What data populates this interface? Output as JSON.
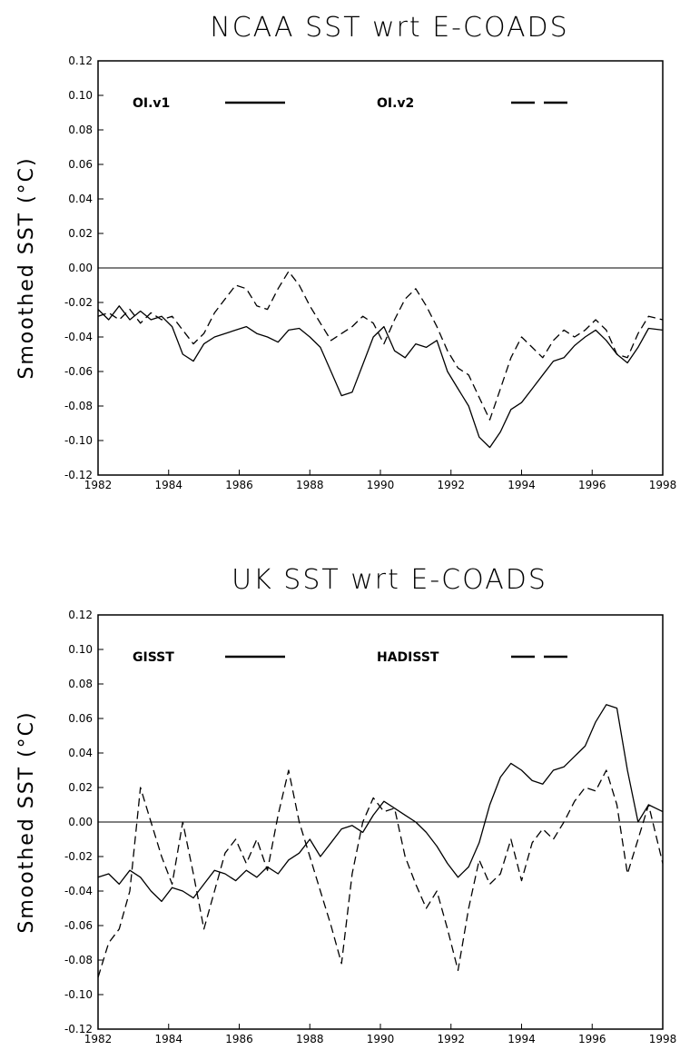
{
  "chart_data": [
    {
      "type": "line",
      "title": "NCAA SST wrt E-COADS",
      "xlabel": "",
      "ylabel": "Smoothed SST (°C)",
      "xlim": [
        1982,
        1998
      ],
      "ylim": [
        -0.12,
        0.12
      ],
      "xticks": [
        "1982",
        "1984",
        "1986",
        "1988",
        "1990",
        "1992",
        "1994",
        "1996",
        "1998"
      ],
      "yticks": [
        "0.12",
        "0.10",
        "0.08",
        "0.06",
        "0.04",
        "0.02",
        "0.00",
        "-0.02",
        "-0.04",
        "-0.06",
        "-0.08",
        "-0.10",
        "-0.12"
      ],
      "grid": false,
      "legend_position": "top",
      "zero_line": true,
      "series": [
        {
          "name": "OI.v1",
          "style": "solid",
          "x": [
            1982,
            1982.3,
            1982.6,
            1982.9,
            1983.2,
            1983.5,
            1983.8,
            1984.1,
            1984.4,
            1984.7,
            1985.0,
            1985.3,
            1985.6,
            1985.9,
            1986.2,
            1986.5,
            1986.8,
            1987.1,
            1987.4,
            1987.7,
            1988.0,
            1988.3,
            1988.6,
            1988.9,
            1989.2,
            1989.5,
            1989.8,
            1990.1,
            1990.4,
            1990.7,
            1991.0,
            1991.3,
            1991.6,
            1991.9,
            1992.2,
            1992.5,
            1992.8,
            1993.1,
            1993.4,
            1993.7,
            1994.0,
            1994.3,
            1994.6,
            1994.9,
            1995.2,
            1995.5,
            1995.8,
            1996.1,
            1996.4,
            1996.7,
            1997.0,
            1997.3,
            1997.6,
            1998.0
          ],
          "y": [
            -0.024,
            -0.03,
            -0.022,
            -0.03,
            -0.025,
            -0.03,
            -0.028,
            -0.034,
            -0.05,
            -0.054,
            -0.044,
            -0.04,
            -0.038,
            -0.036,
            -0.034,
            -0.038,
            -0.04,
            -0.043,
            -0.036,
            -0.035,
            -0.04,
            -0.046,
            -0.06,
            -0.074,
            -0.072,
            -0.056,
            -0.04,
            -0.034,
            -0.048,
            -0.052,
            -0.044,
            -0.046,
            -0.042,
            -0.06,
            -0.07,
            -0.08,
            -0.098,
            -0.104,
            -0.095,
            -0.082,
            -0.078,
            -0.07,
            -0.062,
            -0.054,
            -0.052,
            -0.045,
            -0.04,
            -0.036,
            -0.042,
            -0.05,
            -0.055,
            -0.046,
            -0.035,
            -0.036
          ]
        },
        {
          "name": "OI.v2",
          "style": "dashed",
          "x": [
            1982,
            1982.3,
            1982.6,
            1982.9,
            1983.2,
            1983.5,
            1983.8,
            1984.1,
            1984.4,
            1984.7,
            1985.0,
            1985.3,
            1985.6,
            1985.9,
            1986.2,
            1986.5,
            1986.8,
            1987.1,
            1987.4,
            1987.7,
            1988.0,
            1988.3,
            1988.6,
            1988.9,
            1989.2,
            1989.5,
            1989.8,
            1990.1,
            1990.4,
            1990.7,
            1991.0,
            1991.3,
            1991.6,
            1991.9,
            1992.2,
            1992.5,
            1992.8,
            1993.1,
            1993.4,
            1993.7,
            1994.0,
            1994.3,
            1994.6,
            1994.9,
            1995.2,
            1995.5,
            1995.8,
            1996.1,
            1996.4,
            1996.7,
            1997.0,
            1997.3,
            1997.6,
            1998.0
          ],
          "y": [
            -0.028,
            -0.026,
            -0.03,
            -0.024,
            -0.032,
            -0.026,
            -0.03,
            -0.028,
            -0.036,
            -0.044,
            -0.038,
            -0.026,
            -0.018,
            -0.01,
            -0.012,
            -0.022,
            -0.024,
            -0.012,
            -0.002,
            -0.01,
            -0.022,
            -0.032,
            -0.042,
            -0.038,
            -0.034,
            -0.028,
            -0.032,
            -0.044,
            -0.03,
            -0.018,
            -0.012,
            -0.022,
            -0.034,
            -0.048,
            -0.058,
            -0.062,
            -0.075,
            -0.088,
            -0.07,
            -0.052,
            -0.04,
            -0.046,
            -0.052,
            -0.042,
            -0.036,
            -0.04,
            -0.036,
            -0.03,
            -0.036,
            -0.05,
            -0.052,
            -0.038,
            -0.028,
            -0.03
          ]
        }
      ]
    },
    {
      "type": "line",
      "title": "UK SST wrt E-COADS",
      "xlabel": "",
      "ylabel": "Smoothed SST (°C)",
      "xlim": [
        1982,
        1998
      ],
      "ylim": [
        -0.12,
        0.12
      ],
      "xticks": [
        "1982",
        "1984",
        "1986",
        "1988",
        "1990",
        "1992",
        "1994",
        "1996",
        "1998"
      ],
      "yticks": [
        "0.12",
        "0.10",
        "0.08",
        "0.06",
        "0.04",
        "0.02",
        "0.00",
        "-0.02",
        "-0.04",
        "-0.06",
        "-0.08",
        "-0.10",
        "-0.12"
      ],
      "grid": false,
      "legend_position": "top",
      "zero_line": true,
      "series": [
        {
          "name": "GISST",
          "style": "solid",
          "x": [
            1982,
            1982.3,
            1982.6,
            1982.9,
            1983.2,
            1983.5,
            1983.8,
            1984.1,
            1984.4,
            1984.7,
            1985.0,
            1985.3,
            1985.6,
            1985.9,
            1986.2,
            1986.5,
            1986.8,
            1987.1,
            1987.4,
            1987.7,
            1988.0,
            1988.3,
            1988.6,
            1988.9,
            1989.2,
            1989.5,
            1989.8,
            1990.1,
            1990.4,
            1990.7,
            1991.0,
            1991.3,
            1991.6,
            1991.9,
            1992.2,
            1992.5,
            1992.8,
            1993.1,
            1993.4,
            1993.7,
            1994.0,
            1994.3,
            1994.6,
            1994.9,
            1995.2,
            1995.5,
            1995.8,
            1996.1,
            1996.4,
            1996.7,
            1997.0,
            1997.3,
            1997.6,
            1998.0
          ],
          "y": [
            -0.032,
            -0.03,
            -0.036,
            -0.028,
            -0.032,
            -0.04,
            -0.046,
            -0.038,
            -0.04,
            -0.044,
            -0.036,
            -0.028,
            -0.03,
            -0.034,
            -0.028,
            -0.032,
            -0.026,
            -0.03,
            -0.022,
            -0.018,
            -0.01,
            -0.02,
            -0.012,
            -0.004,
            -0.002,
            -0.006,
            0.004,
            0.012,
            0.008,
            0.004,
            0.0,
            -0.006,
            -0.014,
            -0.024,
            -0.032,
            -0.026,
            -0.012,
            0.01,
            0.026,
            0.034,
            0.03,
            0.024,
            0.022,
            0.03,
            0.032,
            0.038,
            0.044,
            0.058,
            0.068,
            0.066,
            0.03,
            0.0,
            0.01,
            0.006
          ]
        },
        {
          "name": "HADISST",
          "style": "dashed",
          "x": [
            1982,
            1982.3,
            1982.6,
            1982.9,
            1983.2,
            1983.5,
            1983.8,
            1984.1,
            1984.4,
            1984.7,
            1985.0,
            1985.3,
            1985.6,
            1985.9,
            1986.2,
            1986.5,
            1986.8,
            1987.1,
            1987.4,
            1987.7,
            1988.0,
            1988.3,
            1988.6,
            1988.9,
            1989.2,
            1989.5,
            1989.8,
            1990.1,
            1990.4,
            1990.7,
            1991.0,
            1991.3,
            1991.6,
            1991.9,
            1992.2,
            1992.5,
            1992.8,
            1993.1,
            1993.4,
            1993.7,
            1994.0,
            1994.3,
            1994.6,
            1994.9,
            1995.2,
            1995.5,
            1995.8,
            1996.1,
            1996.4,
            1996.7,
            1997.0,
            1997.3,
            1997.6,
            1998.0
          ],
          "y": [
            -0.09,
            -0.07,
            -0.062,
            -0.04,
            0.02,
            0.0,
            -0.02,
            -0.036,
            0.0,
            -0.03,
            -0.062,
            -0.04,
            -0.018,
            -0.01,
            -0.024,
            -0.01,
            -0.028,
            0.004,
            0.03,
            0.0,
            -0.02,
            -0.04,
            -0.06,
            -0.082,
            -0.03,
            0.0,
            0.014,
            0.006,
            0.008,
            -0.02,
            -0.036,
            -0.05,
            -0.04,
            -0.062,
            -0.086,
            -0.05,
            -0.022,
            -0.036,
            -0.03,
            -0.01,
            -0.034,
            -0.012,
            -0.004,
            -0.01,
            0.0,
            0.012,
            0.02,
            0.018,
            0.03,
            0.01,
            -0.03,
            -0.01,
            0.01,
            -0.024
          ]
        }
      ]
    }
  ]
}
